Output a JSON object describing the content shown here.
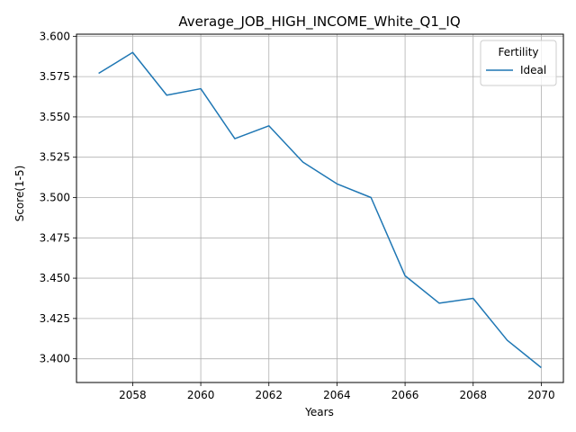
{
  "chart_data": {
    "type": "line",
    "title": "Average_JOB_HIGH_INCOME_White_Q1_IQ",
    "xlabel": "Years",
    "ylabel": "Score(1-5)",
    "xlim": [
      2056.35,
      2070.65
    ],
    "ylim": [
      3.3853,
      3.6013
    ],
    "x_ticks": [
      2058,
      2060,
      2062,
      2064,
      2066,
      2068,
      2070
    ],
    "y_ticks": [
      3.4,
      3.425,
      3.45,
      3.475,
      3.5,
      3.525,
      3.55,
      3.575,
      3.6
    ],
    "grid": true,
    "legend": {
      "title": "Fertility",
      "position": "top-right"
    },
    "series": [
      {
        "name": "Ideal",
        "color": "#1f77b4",
        "x": [
          2057,
          2058,
          2059,
          2060,
          2061,
          2062,
          2063,
          2064,
          2065,
          2066,
          2067,
          2068,
          2069,
          2070
        ],
        "y": [
          3.577,
          3.59,
          3.5635,
          3.5675,
          3.5365,
          3.5445,
          3.522,
          3.5085,
          3.5,
          3.4515,
          3.4345,
          3.4375,
          3.4115,
          3.3945
        ]
      }
    ]
  }
}
